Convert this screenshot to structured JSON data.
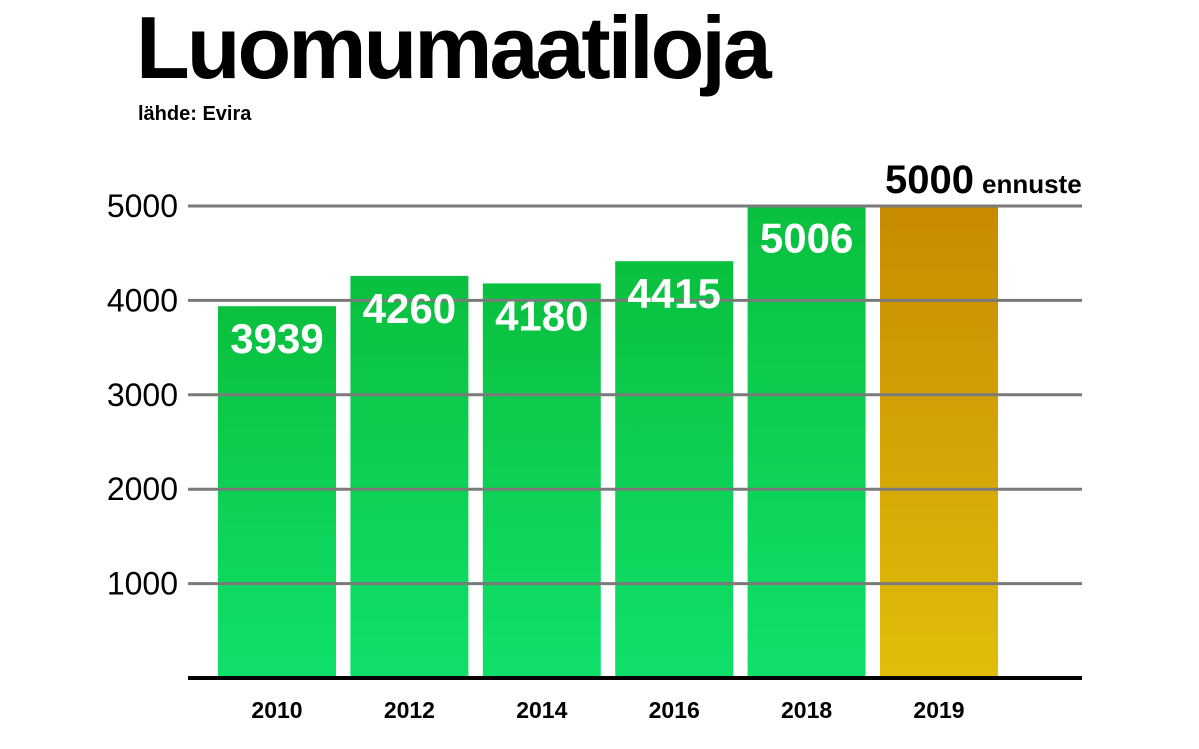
{
  "header": {
    "title": "Luomumaatiloja",
    "source": "lähde: Evira"
  },
  "colors": {
    "bar_top": "#0ac03e",
    "bar_bottom": "#0fe06a",
    "forecast_top": "#c88a00",
    "forecast_bottom": "#e0be0a",
    "grid": "#7a7a7a",
    "axis": "#000000",
    "value_label": "#ffffff"
  },
  "chart_data": {
    "type": "bar",
    "title": "Luomumaatiloja",
    "subtitle": "lähde: Evira",
    "categories": [
      "2010",
      "2012",
      "2014",
      "2016",
      "2018",
      "2019"
    ],
    "values": [
      3939,
      4260,
      4180,
      4415,
      5006,
      5000
    ],
    "value_labels": [
      "3939",
      "4260",
      "4180",
      "4415",
      "5006",
      "5000"
    ],
    "forecast_index": 5,
    "forecast_note": "ennuste",
    "ylim": [
      0,
      5000
    ],
    "yticks": [
      1000,
      2000,
      3000,
      4000,
      5000
    ],
    "ytick_labels": [
      "1000",
      "2000",
      "3000",
      "4000",
      "5000"
    ],
    "grid": true,
    "xlabel": "",
    "ylabel": ""
  }
}
